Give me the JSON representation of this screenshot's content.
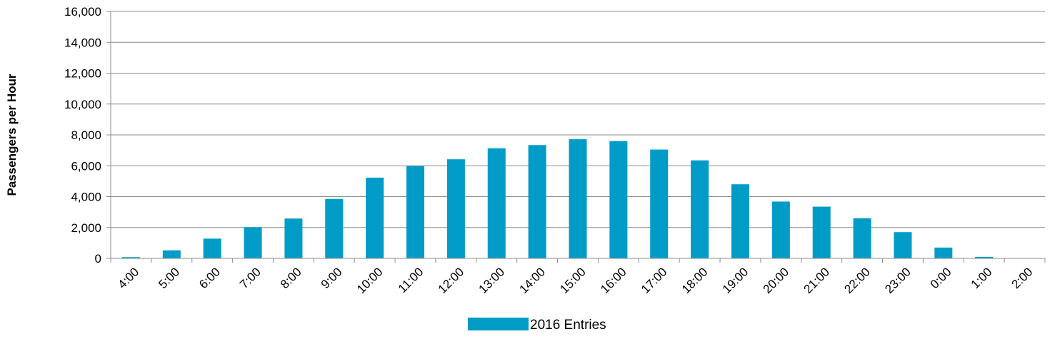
{
  "chart_data": {
    "type": "bar",
    "title": "",
    "xlabel": "",
    "ylabel": "Passengers per Hour",
    "ylim": [
      0,
      16000
    ],
    "y_ticks": [
      "0",
      "2,000",
      "4,000",
      "6,000",
      "8,000",
      "10,000",
      "12,000",
      "14,000",
      "16,000"
    ],
    "grid": true,
    "legend_position": "bottom",
    "categories": [
      "4:00",
      "5:00",
      "6:00",
      "7:00",
      "8:00",
      "9:00",
      "10:00",
      "11:00",
      "12:00",
      "13:00",
      "14:00",
      "15:00",
      "16:00",
      "17:00",
      "18:00",
      "19:00",
      "20:00",
      "21:00",
      "22:00",
      "23:00",
      "0:00",
      "1:00",
      "2:00"
    ],
    "series": [
      {
        "name": "2016 Entries",
        "color": "#009CC7",
        "values": [
          80,
          520,
          1280,
          2020,
          2580,
          3850,
          5230,
          5980,
          6420,
          7130,
          7340,
          7720,
          7600,
          7050,
          6350,
          4800,
          3680,
          3350,
          2600,
          1700,
          700,
          100,
          0
        ]
      }
    ]
  }
}
